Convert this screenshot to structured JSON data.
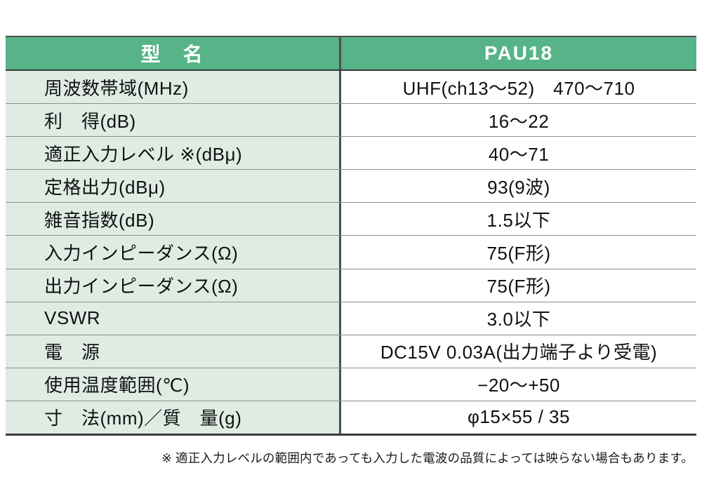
{
  "table": {
    "header": {
      "model_label": "型　名",
      "model_value": "PAU18"
    },
    "rows": [
      {
        "label": "周波数帯域(MHz)",
        "value": "UHF(ch13〜52)　470〜710"
      },
      {
        "label": "利　得(dB)",
        "value": "16〜22"
      },
      {
        "label": "適正入力レベル ※(dBμ)",
        "value": "40〜71"
      },
      {
        "label": "定格出力(dBμ)",
        "value": "93(9波)"
      },
      {
        "label": "雑音指数(dB)",
        "value": "1.5以下"
      },
      {
        "label": "入力インピーダンス(Ω)",
        "value": "75(F形)"
      },
      {
        "label": "出力インピーダンス(Ω)",
        "value": "75(F形)"
      },
      {
        "label": "VSWR",
        "value": "3.0以下"
      },
      {
        "label": "電　源",
        "value": "DC15V 0.03A(出力端子より受電)"
      },
      {
        "label": "使用温度範囲(℃)",
        "value": "−20〜+50"
      },
      {
        "label": "寸　法(mm)／質　量(g)",
        "value": "φ15×55 / 35"
      }
    ]
  },
  "footnote": "※ 適正入力レベルの範囲内であっても入力した電波の品質によっては映らない場合もあります。",
  "colors": {
    "header_green": "#56b488",
    "row_green": "#dfece4",
    "divider_dark": "#4f4f4f",
    "separator_gray": "#8f8f8f"
  }
}
